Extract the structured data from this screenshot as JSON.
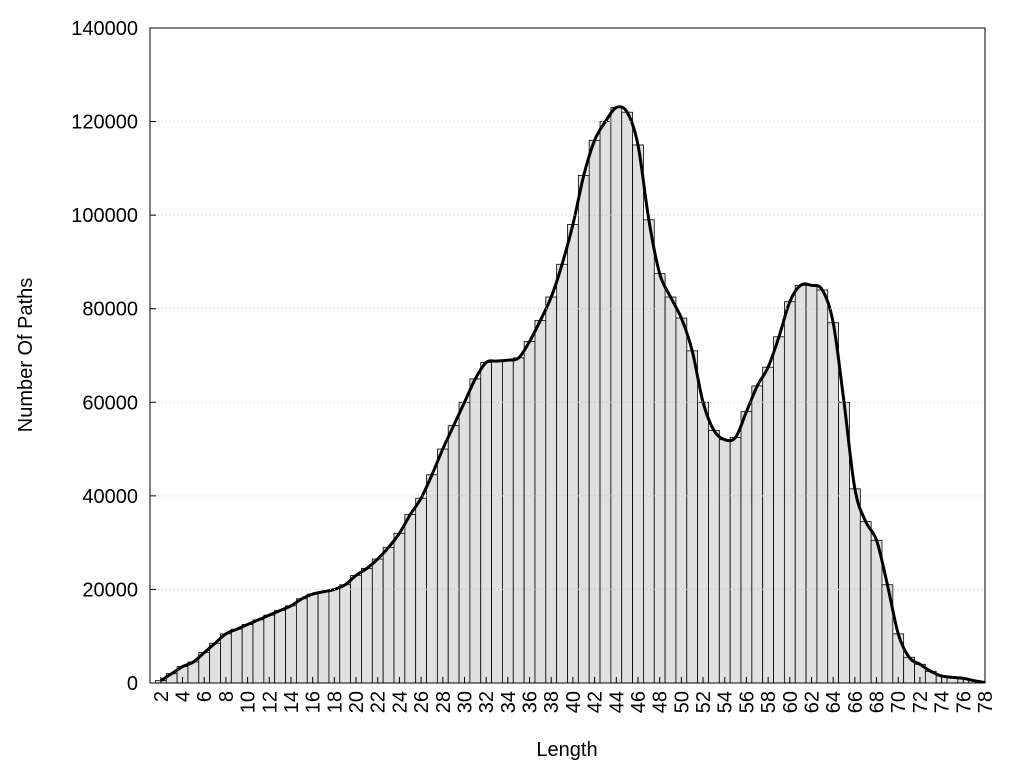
{
  "chart_data": {
    "type": "bar",
    "x_label": "Length",
    "y_label": "Number Of Paths",
    "x": [
      2,
      3,
      4,
      5,
      6,
      7,
      8,
      9,
      10,
      11,
      12,
      13,
      14,
      15,
      16,
      17,
      18,
      19,
      20,
      21,
      22,
      23,
      24,
      25,
      26,
      27,
      28,
      29,
      30,
      31,
      32,
      33,
      34,
      35,
      36,
      37,
      38,
      39,
      40,
      41,
      42,
      43,
      44,
      45,
      46,
      47,
      48,
      49,
      50,
      51,
      52,
      53,
      54,
      55,
      56,
      57,
      58,
      59,
      60,
      61,
      62,
      63,
      64,
      65,
      66,
      67,
      68,
      69,
      70,
      71,
      72,
      73,
      74,
      75,
      76,
      77,
      78
    ],
    "values": [
      500,
      2000,
      3500,
      4500,
      6500,
      8500,
      10500,
      11500,
      12500,
      13500,
      14500,
      15500,
      16500,
      18000,
      19000,
      19500,
      20000,
      21000,
      23000,
      24500,
      26500,
      29000,
      32000,
      36000,
      39500,
      44500,
      50000,
      55000,
      60000,
      65000,
      68500,
      68800,
      69000,
      69500,
      73000,
      77500,
      82500,
      89500,
      98000,
      108500,
      116000,
      120000,
      123000,
      122000,
      115000,
      99000,
      87500,
      82500,
      78000,
      71000,
      60000,
      54000,
      52000,
      52500,
      58000,
      63500,
      67500,
      74000,
      81500,
      85000,
      85000,
      84000,
      77000,
      60000,
      41500,
      34500,
      30500,
      21000,
      10500,
      5500,
      4000,
      2500,
      1500,
      1200,
      1000,
      500,
      100
    ],
    "bar_color": "#e0e0e0",
    "line_color": "#000000",
    "xlim": [
      1,
      78
    ],
    "xticks": [
      2,
      4,
      6,
      8,
      10,
      12,
      14,
      16,
      18,
      20,
      22,
      24,
      26,
      28,
      30,
      32,
      34,
      36,
      38,
      40,
      42,
      44,
      46,
      48,
      50,
      52,
      54,
      56,
      58,
      60,
      62,
      64,
      66,
      68,
      70,
      72,
      74,
      76,
      78
    ],
    "ylim": [
      0,
      140000
    ],
    "yticks": [
      0,
      20000,
      40000,
      60000,
      80000,
      100000,
      120000,
      140000
    ],
    "grid": true
  }
}
